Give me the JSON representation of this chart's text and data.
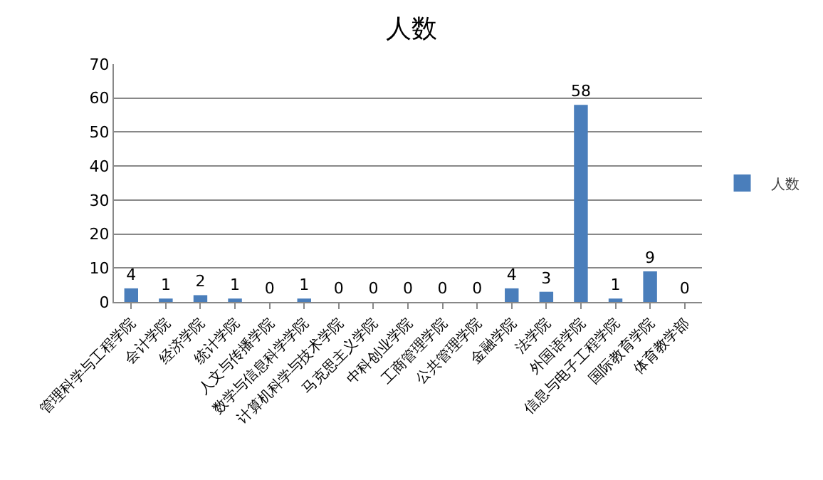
{
  "chart_data": {
    "type": "bar",
    "title": "人数",
    "categories": [
      "管理科学与工程学院",
      "会计学院",
      "经济学院",
      "统计学院",
      "人文与传播学院",
      "数学与信息科学学院",
      "计算机科学与技术学院",
      "马克思主义学院",
      "中科创业学院",
      "工商管理学院",
      "公共管理学院",
      "金融学院",
      "法学院",
      "外国语学院",
      "信息与电子工程学院",
      "国际教育学院",
      "体育教学部"
    ],
    "series": [
      {
        "name": "人数",
        "color": "#4a7ebb",
        "values": [
          4,
          1,
          2,
          1,
          0,
          1,
          0,
          0,
          0,
          0,
          0,
          4,
          3,
          58,
          1,
          9,
          0
        ]
      }
    ],
    "ylim": [
      0,
      70
    ],
    "yticks": [
      0,
      10,
      20,
      30,
      40,
      50,
      60,
      70
    ],
    "grid": "y",
    "legend": "right",
    "data_labels": true
  }
}
